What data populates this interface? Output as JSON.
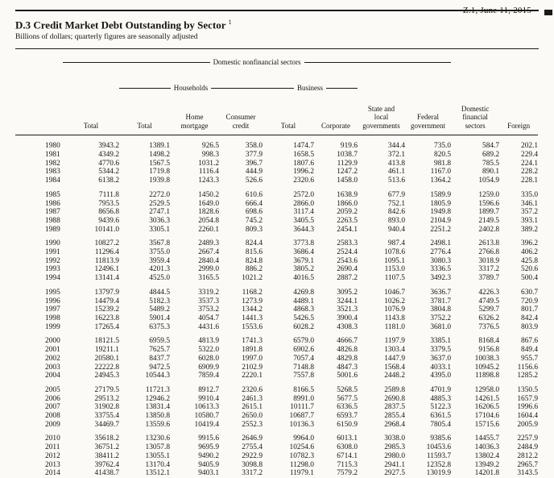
{
  "page_header": {
    "release_date": "Z.1, June 11, 2015"
  },
  "title": "D.3 Credit Market Debt Outstanding by Sector",
  "footnote_marker": "1",
  "subtitle": "Billions of dollars; quarterly figures are seasonally adjusted",
  "table": {
    "group_headers": {
      "domestic_nonfinancial": "Domestic nonfinancial sectors",
      "households": "Households",
      "business": "Business"
    },
    "columns": {
      "total": "Total",
      "hh_total": "Total",
      "home_mortgage": "Home\nmortgage",
      "consumer_credit": "Consumer\ncredit",
      "biz_total": "Total",
      "corporate": "Corporate",
      "state_local": "State and\nlocal\ngovernments",
      "federal": "Federal\ngovernment",
      "dom_financial": "Domestic\nfinancial\nsectors",
      "foreign": "Foreign"
    },
    "blocks": [
      [
        [
          "1980",
          "3943.2",
          "1389.1",
          "926.5",
          "358.0",
          "1474.7",
          "919.6",
          "344.4",
          "735.0",
          "584.7",
          "202.1"
        ],
        [
          "1981",
          "4349.2",
          "1498.2",
          "998.3",
          "377.9",
          "1658.5",
          "1038.7",
          "372.1",
          "820.5",
          "689.2",
          "229.4"
        ],
        [
          "1982",
          "4770.6",
          "1567.5",
          "1031.2",
          "396.7",
          "1807.6",
          "1129.9",
          "413.8",
          "981.8",
          "785.5",
          "224.1"
        ],
        [
          "1983",
          "5344.2",
          "1719.8",
          "1116.4",
          "444.9",
          "1996.2",
          "1247.2",
          "461.1",
          "1167.0",
          "890.1",
          "228.2"
        ],
        [
          "1984",
          "6138.2",
          "1939.8",
          "1243.3",
          "526.6",
          "2320.6",
          "1458.0",
          "513.6",
          "1364.2",
          "1054.9",
          "228.1"
        ]
      ],
      [
        [
          "1985",
          "7111.8",
          "2272.0",
          "1450.2",
          "610.6",
          "2572.0",
          "1638.9",
          "677.9",
          "1589.9",
          "1259.0",
          "335.0"
        ],
        [
          "1986",
          "7953.5",
          "2529.5",
          "1649.0",
          "666.4",
          "2866.0",
          "1866.0",
          "752.1",
          "1805.9",
          "1596.6",
          "346.1"
        ],
        [
          "1987",
          "8656.8",
          "2747.1",
          "1828.6",
          "698.6",
          "3117.4",
          "2059.2",
          "842.6",
          "1949.8",
          "1899.7",
          "357.2"
        ],
        [
          "1988",
          "9439.6",
          "3036.3",
          "2054.8",
          "745.2",
          "3405.5",
          "2263.5",
          "893.0",
          "2104.9",
          "2149.5",
          "393.1"
        ],
        [
          "1989",
          "10141.0",
          "3305.1",
          "2260.1",
          "809.3",
          "3644.3",
          "2454.1",
          "940.4",
          "2251.2",
          "2402.8",
          "389.2"
        ]
      ],
      [
        [
          "1990",
          "10827.2",
          "3567.8",
          "2489.3",
          "824.4",
          "3773.8",
          "2583.3",
          "987.4",
          "2498.1",
          "2613.8",
          "396.2"
        ],
        [
          "1991",
          "11296.4",
          "3755.0",
          "2667.4",
          "815.6",
          "3686.4",
          "2524.4",
          "1078.6",
          "2776.4",
          "2766.8",
          "406.2"
        ],
        [
          "1992",
          "11813.9",
          "3959.4",
          "2840.4",
          "824.8",
          "3679.1",
          "2543.6",
          "1095.1",
          "3080.3",
          "3018.9",
          "425.8"
        ],
        [
          "1993",
          "12496.1",
          "4201.3",
          "2999.0",
          "886.2",
          "3805.2",
          "2690.4",
          "1153.0",
          "3336.5",
          "3317.2",
          "520.6"
        ],
        [
          "1994",
          "13141.4",
          "4525.0",
          "3165.5",
          "1021.2",
          "4016.5",
          "2887.2",
          "1107.5",
          "3492.3",
          "3789.7",
          "500.4"
        ]
      ],
      [
        [
          "1995",
          "13797.9",
          "4844.5",
          "3319.2",
          "1168.2",
          "4269.8",
          "3095.2",
          "1046.7",
          "3636.7",
          "4226.3",
          "630.7"
        ],
        [
          "1996",
          "14479.4",
          "5182.3",
          "3537.3",
          "1273.9",
          "4489.1",
          "3244.1",
          "1026.2",
          "3781.7",
          "4749.5",
          "720.9"
        ],
        [
          "1997",
          "15239.2",
          "5489.2",
          "3753.2",
          "1344.2",
          "4868.3",
          "3521.3",
          "1076.9",
          "3804.8",
          "5299.7",
          "801.7"
        ],
        [
          "1998",
          "16223.8",
          "5901.4",
          "4054.7",
          "1441.3",
          "5426.5",
          "3900.4",
          "1143.8",
          "3752.2",
          "6326.2",
          "842.4"
        ],
        [
          "1999",
          "17265.4",
          "6375.3",
          "4431.6",
          "1553.6",
          "6028.2",
          "4308.3",
          "1181.0",
          "3681.0",
          "7376.5",
          "803.9"
        ]
      ],
      [
        [
          "2000",
          "18121.5",
          "6959.5",
          "4813.9",
          "1741.3",
          "6579.0",
          "4666.7",
          "1197.9",
          "3385.1",
          "8168.4",
          "867.6"
        ],
        [
          "2001",
          "19211.1",
          "7625.7",
          "5322.0",
          "1891.8",
          "6902.6",
          "4826.8",
          "1303.4",
          "3379.5",
          "9156.8",
          "849.4"
        ],
        [
          "2002",
          "20580.1",
          "8437.7",
          "6028.0",
          "1997.0",
          "7057.4",
          "4829.8",
          "1447.9",
          "3637.0",
          "10038.3",
          "955.7"
        ],
        [
          "2003",
          "22222.8",
          "9472.5",
          "6909.9",
          "2102.9",
          "7148.8",
          "4847.3",
          "1568.4",
          "4033.1",
          "10945.2",
          "1156.6"
        ],
        [
          "2004",
          "24945.3",
          "10544.3",
          "7859.4",
          "2220.1",
          "7557.8",
          "5001.6",
          "2448.2",
          "4395.0",
          "11898.8",
          "1285.2"
        ]
      ],
      [
        [
          "2005",
          "27179.5",
          "11721.3",
          "8912.7",
          "2320.6",
          "8166.5",
          "5268.5",
          "2589.8",
          "4701.9",
          "12958.0",
          "1350.5"
        ],
        [
          "2006",
          "29513.2",
          "12946.2",
          "9910.4",
          "2461.3",
          "8991.0",
          "5677.5",
          "2690.8",
          "4885.3",
          "14261.5",
          "1657.9"
        ],
        [
          "2007",
          "31902.8",
          "13831.4",
          "10613.3",
          "2615.1",
          "10111.7",
          "6336.5",
          "2837.5",
          "5122.3",
          "16206.5",
          "1996.6"
        ],
        [
          "2008",
          "33755.4",
          "13850.8",
          "10580.7",
          "2650.0",
          "10687.7",
          "6593.7",
          "2855.4",
          "6361.5",
          "17104.6",
          "1604.4"
        ],
        [
          "2009",
          "34469.7",
          "13559.6",
          "10419.4",
          "2552.3",
          "10136.3",
          "6150.9",
          "2968.4",
          "7805.4",
          "15715.6",
          "2005.9"
        ]
      ],
      [
        [
          "2010",
          "35618.2",
          "13230.6",
          "9915.6",
          "2646.9",
          "9964.0",
          "6013.1",
          "3038.0",
          "9385.6",
          "14455.7",
          "2257.9"
        ],
        [
          "2011",
          "36751.2",
          "13057.8",
          "9695.9",
          "2755.4",
          "10254.6",
          "6308.0",
          "2985.3",
          "10453.6",
          "14036.3",
          "2484.9"
        ],
        [
          "2012",
          "38411.2",
          "13055.1",
          "9490.2",
          "2922.9",
          "10782.3",
          "6714.1",
          "2980.0",
          "11593.7",
          "13802.4",
          "2812.2"
        ],
        [
          "2013",
          "39762.4",
          "13170.4",
          "9405.9",
          "3098.8",
          "11298.0",
          "7115.3",
          "2941.1",
          "12352.8",
          "13949.2",
          "2965.7"
        ],
        [
          "2014",
          "41438.7",
          "13512.1",
          "9403.1",
          "3317.2",
          "11979.1",
          "7579.2",
          "2927.5",
          "13019.9",
          "14201.8",
          "3143.5"
        ]
      ]
    ]
  }
}
